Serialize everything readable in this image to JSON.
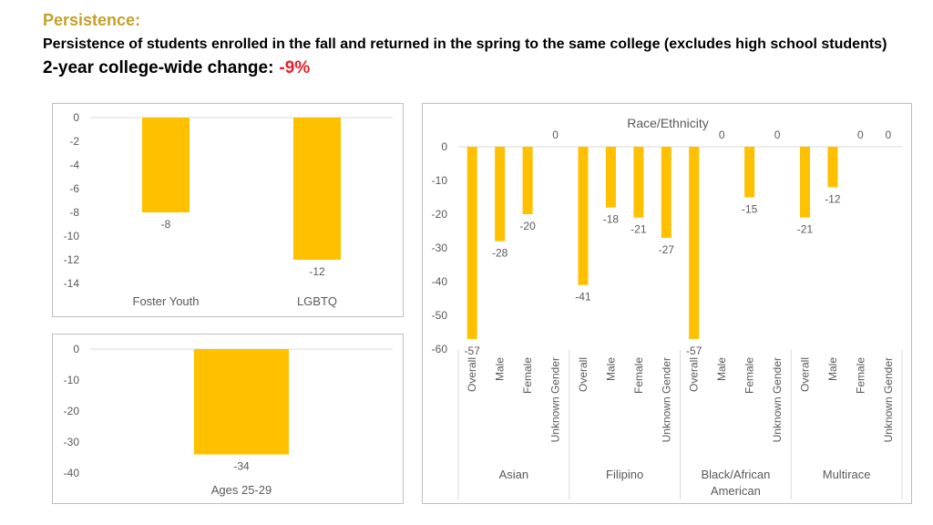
{
  "header": {
    "section": "Persistence:",
    "description": "Persistence of students enrolled in the fall and returned in the spring to the same college (excludes high school students)",
    "change_label": "2-year college-wide change:",
    "change_value": "-9%"
  },
  "colors": {
    "bar": "#ffc000",
    "header_gold": "#c5a028",
    "change_red": "#e8202a",
    "axis_text": "#595959",
    "grid": "#d9d9d9"
  },
  "chart_data": [
    {
      "type": "bar",
      "title": "",
      "categories": [
        "Foster Youth",
        "LGBTQ"
      ],
      "values": [
        -8,
        -12
      ],
      "ylim": [
        -14,
        0
      ],
      "yticks": [
        "0",
        "-2",
        "-4",
        "-6",
        "-8",
        "-10",
        "-12",
        "-14"
      ],
      "data_labels": [
        "-8",
        "-12"
      ],
      "grid": false
    },
    {
      "type": "bar",
      "title": "",
      "categories": [
        "Ages 25-29"
      ],
      "values": [
        -34
      ],
      "ylim": [
        -40,
        0
      ],
      "yticks": [
        "0",
        "-10",
        "-20",
        "-30",
        "-40"
      ],
      "data_labels": [
        "-34"
      ],
      "grid": false
    },
    {
      "type": "bar",
      "title": "Race/Ethnicity",
      "groups": [
        {
          "name_lines": [
            "Asian"
          ],
          "categories": [
            "Overall",
            "Male",
            "Female",
            "Unknown Gender"
          ],
          "values": [
            -57,
            -28,
            -20,
            0
          ],
          "data_labels": [
            "-57",
            "-28",
            "-20",
            "0"
          ]
        },
        {
          "name_lines": [
            "Filipino"
          ],
          "categories": [
            "Overall",
            "Male",
            "Female",
            "Unknown Gender"
          ],
          "values": [
            -41,
            -18,
            -21,
            -27
          ],
          "data_labels": [
            "-41",
            "-18",
            "-21",
            "-27"
          ]
        },
        {
          "name_lines": [
            "Black/African",
            "American"
          ],
          "categories": [
            "Overall",
            "Male",
            "Female",
            "Unknown Gender"
          ],
          "values": [
            -57,
            0,
            -15,
            0
          ],
          "data_labels": [
            "-57",
            "0",
            "-15",
            "0"
          ]
        },
        {
          "name_lines": [
            "Multirace"
          ],
          "categories": [
            "Overall",
            "Male",
            "Female",
            "Unknown Gender"
          ],
          "values": [
            -21,
            -12,
            0,
            0
          ],
          "data_labels": [
            "-21",
            "-12",
            "0",
            "0"
          ]
        }
      ],
      "ylim": [
        -60,
        0
      ],
      "yticks": [
        "0",
        "-10",
        "-20",
        "-30",
        "-40",
        "-50",
        "-60"
      ],
      "grid": false
    }
  ]
}
